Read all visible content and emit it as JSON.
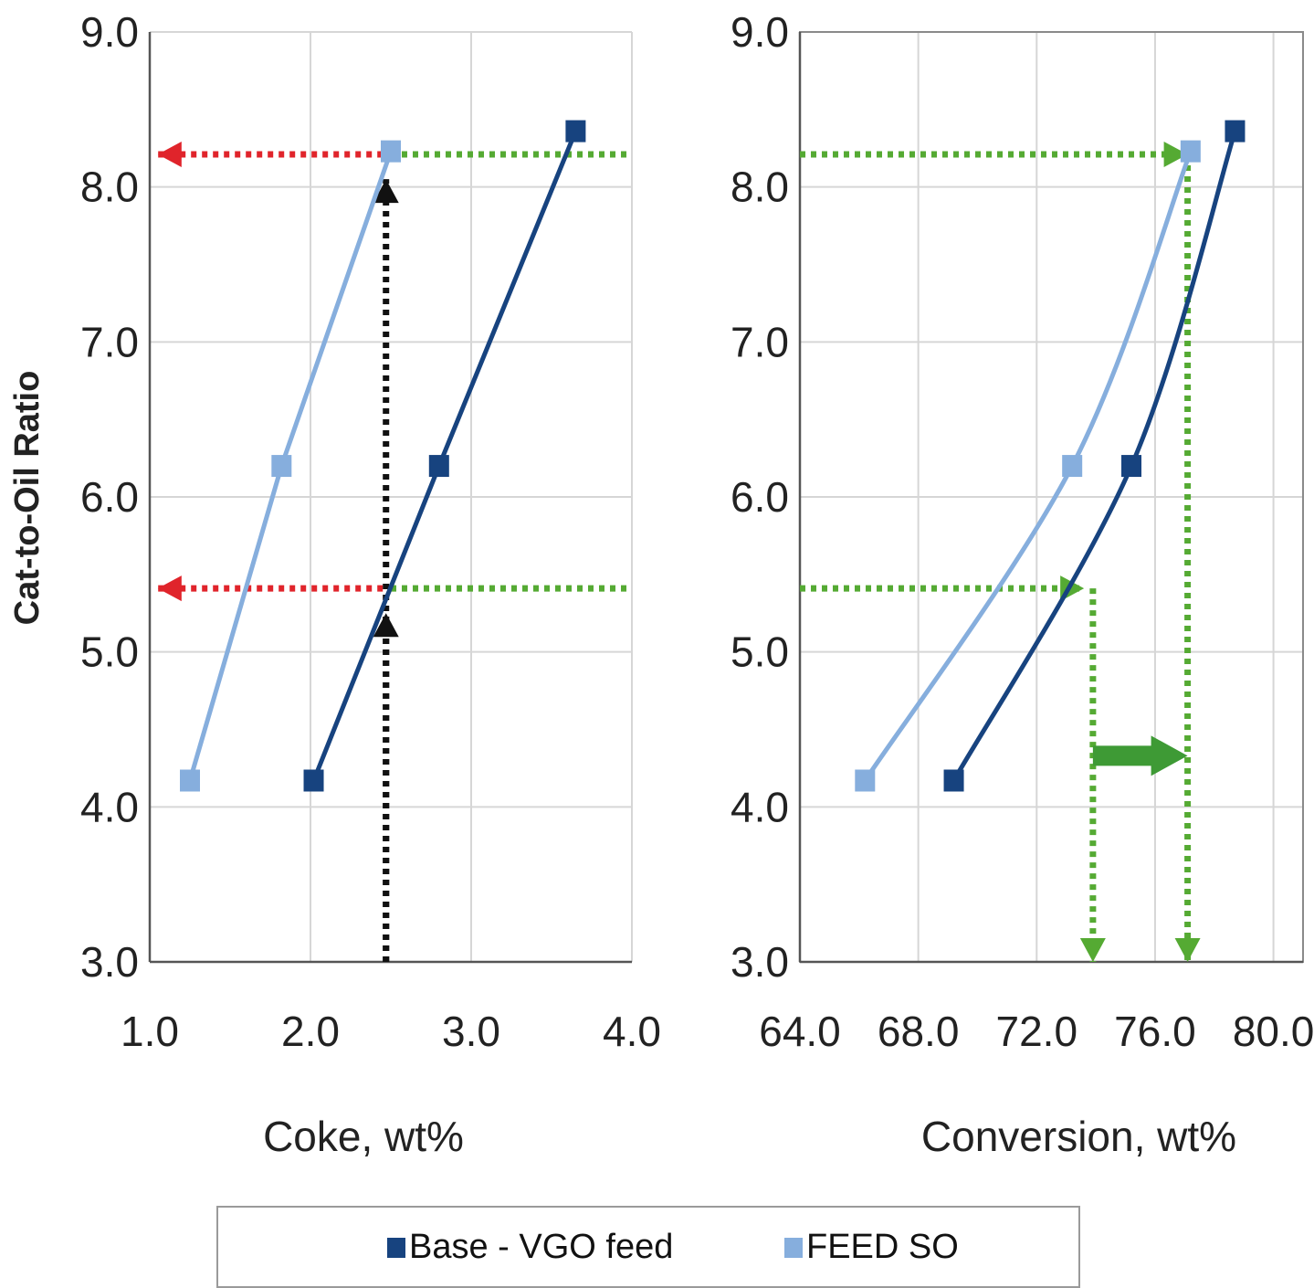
{
  "chart_data": [
    {
      "type": "line",
      "xlabel": "Coke, wt%",
      "ylabel": "Cat-to-Oil Ratio",
      "xlim": [
        1.0,
        4.0
      ],
      "ylim": [
        3.0,
        9.0
      ],
      "x_ticks": [
        "1.0",
        "2.0",
        "3.0",
        "4.0"
      ],
      "y_ticks": [
        "3.0",
        "4.0",
        "5.0",
        "6.0",
        "7.0",
        "8.0",
        "9.0"
      ],
      "grid": true,
      "series": [
        {
          "name": "Base - VGO feed",
          "color": "#17437f",
          "x": [
            2.02,
            2.8,
            3.65
          ],
          "y": [
            4.17,
            6.2,
            8.36
          ]
        },
        {
          "name": "FEED SO",
          "color": "#86aedd",
          "x": [
            1.25,
            1.82,
            2.5
          ],
          "y": [
            4.17,
            6.2,
            8.23
          ]
        }
      ],
      "annotations": [
        {
          "style": "dotted-arrow",
          "color": "#e0242b",
          "from": [
            2.45,
            8.21
          ],
          "to": [
            1.05,
            8.21
          ]
        },
        {
          "style": "dotted-arrow",
          "color": "#e0242b",
          "from": [
            2.45,
            5.41
          ],
          "to": [
            1.05,
            5.41
          ]
        },
        {
          "style": "dotted-arrow",
          "color": "#111111",
          "from": [
            2.47,
            3.0
          ],
          "to": [
            2.47,
            8.05
          ]
        },
        {
          "style": "dotted-arrow",
          "color": "#111111",
          "from": [
            2.47,
            3.0
          ],
          "to": [
            2.47,
            5.25
          ]
        },
        {
          "style": "dotted-line",
          "color": "#55aa33",
          "from": [
            2.5,
            8.21
          ],
          "to": [
            4.0,
            8.21
          ]
        },
        {
          "style": "dotted-line",
          "color": "#55aa33",
          "from": [
            2.5,
            5.41
          ],
          "to": [
            4.0,
            5.41
          ]
        }
      ]
    },
    {
      "type": "line",
      "xlabel": "Conversion, wt%",
      "ylabel": "",
      "xlim": [
        64.0,
        81.0
      ],
      "ylim": [
        3.0,
        9.0
      ],
      "x_ticks": [
        "64.0",
        "68.0",
        "72.0",
        "76.0",
        "80.0"
      ],
      "y_ticks": [
        "3.0",
        "4.0",
        "5.0",
        "6.0",
        "7.0",
        "8.0",
        "9.0"
      ],
      "grid": true,
      "series": [
        {
          "name": "Base - VGO feed",
          "color": "#17437f",
          "x": [
            69.2,
            75.2,
            78.7
          ],
          "y": [
            4.17,
            6.2,
            8.36
          ]
        },
        {
          "name": "FEED SO",
          "color": "#86aedd",
          "x": [
            66.2,
            73.2,
            77.2
          ],
          "y": [
            4.17,
            6.2,
            8.23
          ]
        }
      ],
      "annotations": [
        {
          "style": "dotted-arrow",
          "color": "#55aa33",
          "from": [
            64.0,
            8.21
          ],
          "to": [
            77.1,
            8.21
          ]
        },
        {
          "style": "dotted-arrow",
          "color": "#55aa33",
          "from": [
            64.0,
            5.41
          ],
          "to": [
            73.6,
            5.41
          ]
        },
        {
          "style": "dotted-arrow",
          "color": "#55aa33",
          "from": [
            73.9,
            5.41
          ],
          "to": [
            73.9,
            3.0
          ]
        },
        {
          "style": "dotted-arrow",
          "color": "#55aa33",
          "from": [
            77.1,
            8.21
          ],
          "to": [
            77.1,
            3.0
          ]
        },
        {
          "style": "block-arrow",
          "color": "#3e9a35",
          "from": [
            73.9,
            4.33
          ],
          "to": [
            77.1,
            4.33
          ]
        }
      ]
    }
  ],
  "legend": {
    "items": [
      {
        "label": "Base - VGO feed",
        "color": "#17437f"
      },
      {
        "label": "FEED SO",
        "color": "#86aedd"
      }
    ]
  }
}
